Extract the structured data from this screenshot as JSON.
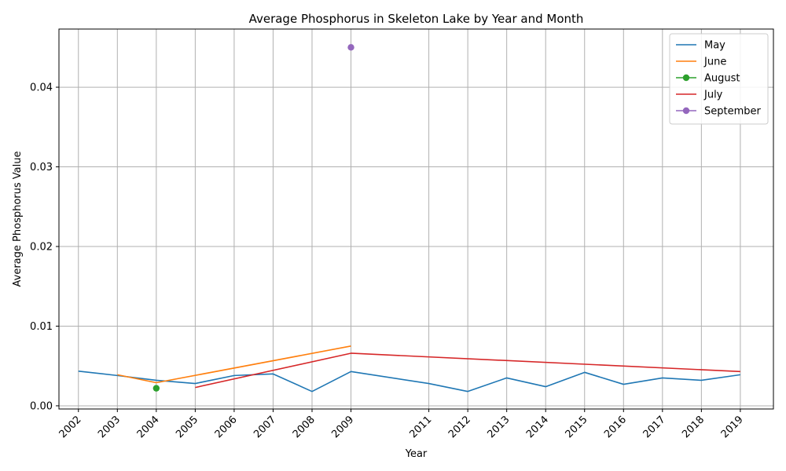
{
  "chart_data": {
    "type": "line",
    "title": "Average Phosphorus in Skeleton Lake by Year and Month",
    "xlabel": "Year",
    "ylabel": "Average Phosphorus Value",
    "xlim": [
      2001.5,
      2019.85
    ],
    "ylim": [
      -0.0004,
      0.0473
    ],
    "x_ticks": [
      "2002",
      "2003",
      "2004",
      "2005",
      "2006",
      "2007",
      "2008",
      "2009",
      "2011",
      "2012",
      "2013",
      "2014",
      "2015",
      "2016",
      "2017",
      "2018",
      "2019"
    ],
    "y_ticks": [
      "0.00",
      "0.01",
      "0.02",
      "0.03",
      "0.04"
    ],
    "grid": true,
    "legend_position": "top-right",
    "series": [
      {
        "name": "May",
        "color": "#1f77b4",
        "marker": false,
        "x": [
          2002,
          2003,
          2004,
          2005,
          2006,
          2007,
          2008,
          2009,
          2011,
          2012,
          2013,
          2014,
          2015,
          2016,
          2017,
          2018,
          2019
        ],
        "values": [
          0.00435,
          0.0038,
          0.0032,
          0.0028,
          0.0038,
          0.004,
          0.0018,
          0.0043,
          0.0028,
          0.0018,
          0.0035,
          0.0024,
          0.0042,
          0.0027,
          0.0035,
          0.0032,
          0.0039
        ]
      },
      {
        "name": "June",
        "color": "#ff7f0e",
        "marker": false,
        "x": [
          2003,
          2004,
          2009
        ],
        "values": [
          0.0039,
          0.0029,
          0.0075
        ]
      },
      {
        "name": "August",
        "color": "#2ca02c",
        "marker": true,
        "x": [
          2004
        ],
        "values": [
          0.0022
        ]
      },
      {
        "name": "July",
        "color": "#d62728",
        "marker": false,
        "x": [
          2005,
          2009,
          2019
        ],
        "values": [
          0.0023,
          0.0066,
          0.0043
        ]
      },
      {
        "name": "September",
        "color": "#9467bd",
        "marker": true,
        "x": [
          2009
        ],
        "values": [
          0.045
        ]
      }
    ]
  }
}
